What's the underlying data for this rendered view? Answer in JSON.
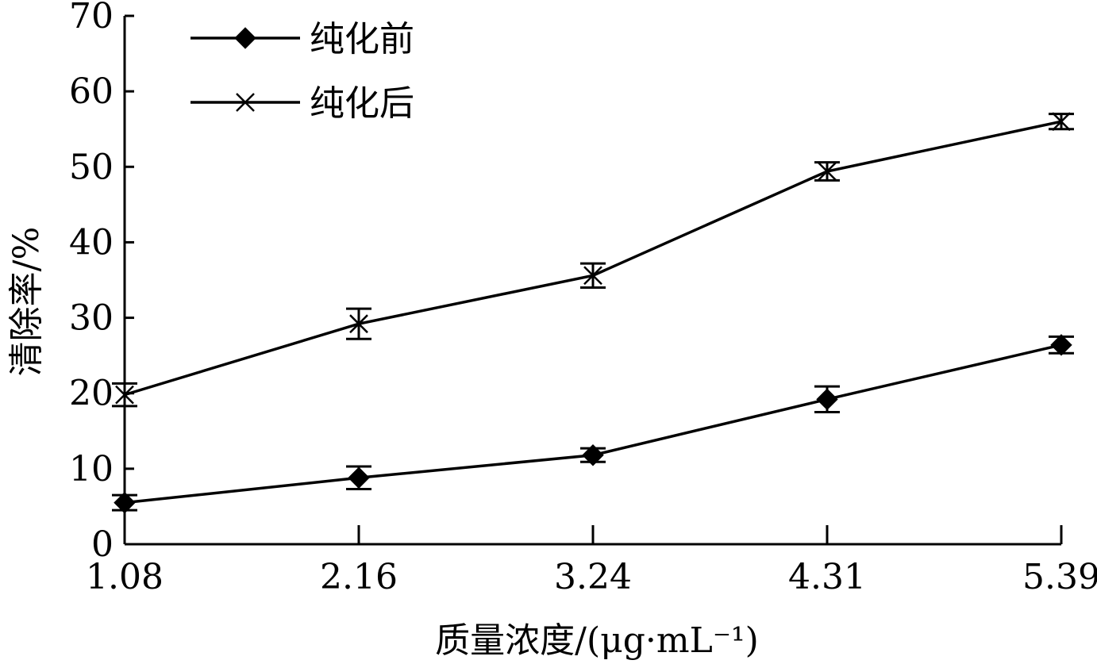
{
  "chart_data": {
    "type": "line",
    "title": "",
    "xlabel": "质量浓度/(μg·mL⁻¹)",
    "ylabel": "清除率/%",
    "categories": [
      "1.08",
      "2.16",
      "3.24",
      "4.31",
      "5.39"
    ],
    "ylim": [
      0,
      70
    ],
    "yticks": [
      0,
      10,
      20,
      30,
      40,
      50,
      60,
      70
    ],
    "grid": false,
    "legend_position": "top-left",
    "series": [
      {
        "name": "纯化前",
        "marker": "diamond",
        "values": [
          5.5,
          8.8,
          11.8,
          19.2,
          26.4
        ],
        "errors": [
          1.0,
          1.5,
          0.9,
          1.7,
          1.1
        ]
      },
      {
        "name": "纯化后",
        "marker": "x",
        "values": [
          19.8,
          29.2,
          35.6,
          49.4,
          56.0
        ],
        "errors": [
          1.5,
          2.0,
          1.6,
          1.2,
          1.0
        ]
      }
    ]
  }
}
